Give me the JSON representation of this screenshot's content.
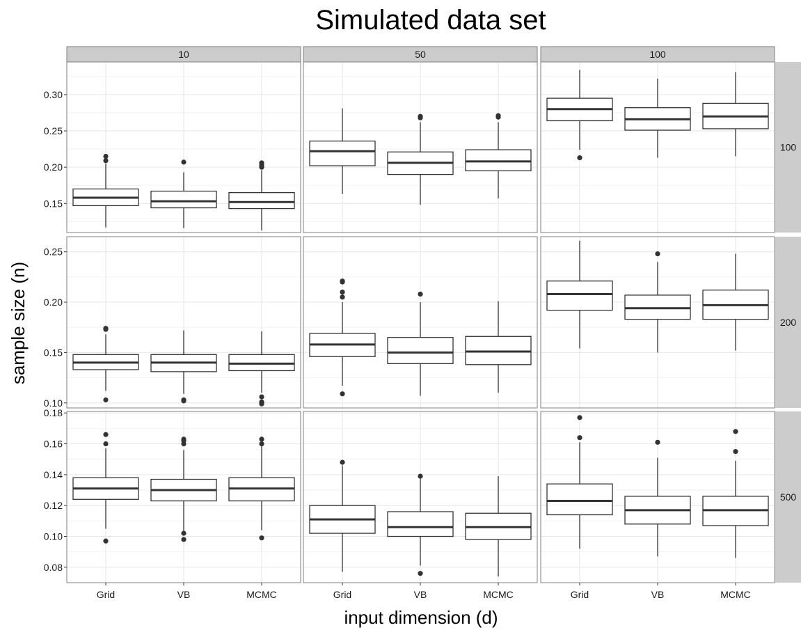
{
  "chart_data": {
    "type": "boxplot",
    "title": "Simulated data set",
    "xlabel": "input dimension (d)",
    "ylabel": "sample size (n)",
    "col_facets": [
      "10",
      "50",
      "100"
    ],
    "row_facets": [
      "100",
      "200",
      "500"
    ],
    "categories": [
      "Grid",
      "VB",
      "MCMC"
    ],
    "grid": true,
    "rows": [
      {
        "label": "100",
        "ylim": [
          0.11,
          0.345
        ],
        "yticks": [
          0.15,
          0.2,
          0.25,
          0.3
        ],
        "ytick_labels": [
          "0.15",
          "0.20",
          "0.25",
          "0.30"
        ],
        "panels": [
          {
            "col": "10",
            "boxes": [
              {
                "category": "Grid",
                "lower_whisker": 0.117,
                "q1": 0.147,
                "median": 0.158,
                "q3": 0.17,
                "upper_whisker": 0.205,
                "outliers": [
                  0.209,
                  0.215
                ]
              },
              {
                "category": "VB",
                "lower_whisker": 0.116,
                "q1": 0.144,
                "median": 0.153,
                "q3": 0.167,
                "upper_whisker": 0.193,
                "outliers": [
                  0.207
                ]
              },
              {
                "category": "MCMC",
                "lower_whisker": 0.113,
                "q1": 0.143,
                "median": 0.152,
                "q3": 0.165,
                "upper_whisker": 0.196,
                "outliers": [
                  0.2,
                  0.203,
                  0.206
                ]
              }
            ]
          },
          {
            "col": "50",
            "boxes": [
              {
                "category": "Grid",
                "lower_whisker": 0.163,
                "q1": 0.202,
                "median": 0.222,
                "q3": 0.236,
                "upper_whisker": 0.281,
                "outliers": []
              },
              {
                "category": "VB",
                "lower_whisker": 0.148,
                "q1": 0.19,
                "median": 0.206,
                "q3": 0.221,
                "upper_whisker": 0.262,
                "outliers": [
                  0.268,
                  0.27
                ]
              },
              {
                "category": "MCMC",
                "lower_whisker": 0.157,
                "q1": 0.195,
                "median": 0.208,
                "q3": 0.224,
                "upper_whisker": 0.262,
                "outliers": [
                  0.269,
                  0.271
                ]
              }
            ]
          },
          {
            "col": "100",
            "boxes": [
              {
                "category": "Grid",
                "lower_whisker": 0.224,
                "q1": 0.264,
                "median": 0.28,
                "q3": 0.295,
                "upper_whisker": 0.334,
                "outliers": [
                  0.213
                ]
              },
              {
                "category": "VB",
                "lower_whisker": 0.213,
                "q1": 0.251,
                "median": 0.266,
                "q3": 0.282,
                "upper_whisker": 0.322,
                "outliers": []
              },
              {
                "category": "MCMC",
                "lower_whisker": 0.215,
                "q1": 0.253,
                "median": 0.27,
                "q3": 0.288,
                "upper_whisker": 0.331,
                "outliers": []
              }
            ]
          }
        ]
      },
      {
        "label": "200",
        "ylim": [
          0.095,
          0.265
        ],
        "yticks": [
          0.1,
          0.15,
          0.2,
          0.25
        ],
        "ytick_labels": [
          "0.10",
          "0.15",
          "0.20",
          "0.25"
        ],
        "panels": [
          {
            "col": "10",
            "boxes": [
              {
                "category": "Grid",
                "lower_whisker": 0.112,
                "q1": 0.133,
                "median": 0.14,
                "q3": 0.148,
                "upper_whisker": 0.168,
                "outliers": [
                  0.103,
                  0.173,
                  0.174
                ]
              },
              {
                "category": "VB",
                "lower_whisker": 0.109,
                "q1": 0.131,
                "median": 0.14,
                "q3": 0.148,
                "upper_whisker": 0.172,
                "outliers": [
                  0.102,
                  0.103
                ]
              },
              {
                "category": "MCMC",
                "lower_whisker": 0.11,
                "q1": 0.132,
                "median": 0.139,
                "q3": 0.148,
                "upper_whisker": 0.171,
                "outliers": [
                  0.099,
                  0.101,
                  0.106
                ]
              }
            ]
          },
          {
            "col": "50",
            "boxes": [
              {
                "category": "Grid",
                "lower_whisker": 0.117,
                "q1": 0.146,
                "median": 0.158,
                "q3": 0.169,
                "upper_whisker": 0.2,
                "outliers": [
                  0.109,
                  0.205,
                  0.21,
                  0.22,
                  0.221
                ]
              },
              {
                "category": "VB",
                "lower_whisker": 0.107,
                "q1": 0.139,
                "median": 0.15,
                "q3": 0.165,
                "upper_whisker": 0.2,
                "outliers": [
                  0.208
                ]
              },
              {
                "category": "MCMC",
                "lower_whisker": 0.11,
                "q1": 0.138,
                "median": 0.151,
                "q3": 0.166,
                "upper_whisker": 0.201,
                "outliers": []
              }
            ]
          },
          {
            "col": "100",
            "boxes": [
              {
                "category": "Grid",
                "lower_whisker": 0.154,
                "q1": 0.192,
                "median": 0.208,
                "q3": 0.221,
                "upper_whisker": 0.261,
                "outliers": []
              },
              {
                "category": "VB",
                "lower_whisker": 0.15,
                "q1": 0.183,
                "median": 0.194,
                "q3": 0.207,
                "upper_whisker": 0.24,
                "outliers": [
                  0.248
                ]
              },
              {
                "category": "MCMC",
                "lower_whisker": 0.152,
                "q1": 0.183,
                "median": 0.197,
                "q3": 0.212,
                "upper_whisker": 0.248,
                "outliers": []
              }
            ]
          }
        ]
      },
      {
        "label": "500",
        "ylim": [
          0.07,
          0.181
        ],
        "yticks": [
          0.08,
          0.1,
          0.12,
          0.14,
          0.16,
          0.18
        ],
        "ytick_labels": [
          "0.08",
          "0.10",
          "0.12",
          "0.14",
          "0.16",
          "0.18"
        ],
        "panels": [
          {
            "col": "10",
            "boxes": [
              {
                "category": "Grid",
                "lower_whisker": 0.105,
                "q1": 0.124,
                "median": 0.131,
                "q3": 0.138,
                "upper_whisker": 0.157,
                "outliers": [
                  0.097,
                  0.16,
                  0.166
                ]
              },
              {
                "category": "VB",
                "lower_whisker": 0.103,
                "q1": 0.123,
                "median": 0.13,
                "q3": 0.137,
                "upper_whisker": 0.156,
                "outliers": [
                  0.098,
                  0.102,
                  0.16,
                  0.162,
                  0.163
                ]
              },
              {
                "category": "MCMC",
                "lower_whisker": 0.104,
                "q1": 0.123,
                "median": 0.131,
                "q3": 0.138,
                "upper_whisker": 0.159,
                "outliers": [
                  0.099,
                  0.16,
                  0.163
                ]
              }
            ]
          },
          {
            "col": "50",
            "boxes": [
              {
                "category": "Grid",
                "lower_whisker": 0.077,
                "q1": 0.102,
                "median": 0.111,
                "q3": 0.12,
                "upper_whisker": 0.146,
                "outliers": [
                  0.148
                ]
              },
              {
                "category": "VB",
                "lower_whisker": 0.081,
                "q1": 0.1,
                "median": 0.106,
                "q3": 0.116,
                "upper_whisker": 0.138,
                "outliers": [
                  0.076,
                  0.139
                ]
              },
              {
                "category": "MCMC",
                "lower_whisker": 0.074,
                "q1": 0.098,
                "median": 0.106,
                "q3": 0.115,
                "upper_whisker": 0.139,
                "outliers": []
              }
            ]
          },
          {
            "col": "100",
            "boxes": [
              {
                "category": "Grid",
                "lower_whisker": 0.092,
                "q1": 0.114,
                "median": 0.123,
                "q3": 0.134,
                "upper_whisker": 0.161,
                "outliers": [
                  0.164,
                  0.177
                ]
              },
              {
                "category": "VB",
                "lower_whisker": 0.087,
                "q1": 0.108,
                "median": 0.117,
                "q3": 0.126,
                "upper_whisker": 0.151,
                "outliers": [
                  0.161
                ]
              },
              {
                "category": "MCMC",
                "lower_whisker": 0.086,
                "q1": 0.107,
                "median": 0.117,
                "q3": 0.126,
                "upper_whisker": 0.149,
                "outliers": [
                  0.155,
                  0.168
                ]
              }
            ]
          }
        ]
      }
    ],
    "colors": {
      "panel_background": "#ffffff",
      "panel_border": "#7f7f7f",
      "grid_major": "#e6e6e6",
      "grid_minor": "#f2f2f2",
      "strip_background": "#cccccc",
      "box_fill": "#ffffff",
      "box_line": "#333333",
      "outlier": "#333333"
    }
  }
}
